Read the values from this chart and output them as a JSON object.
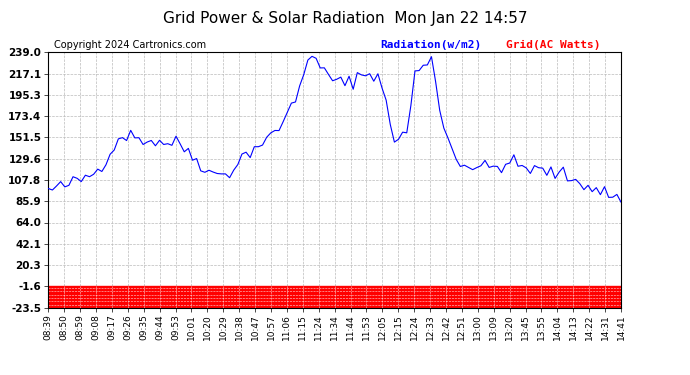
{
  "title": "Grid Power & Solar Radiation  Mon Jan 22 14:57",
  "copyright": "Copyright 2024 Cartronics.com",
  "legend_radiation": "Radiation(w/m2)",
  "legend_grid": "Grid(AC Watts)",
  "radiation_color": "blue",
  "grid_color": "red",
  "background_color": "white",
  "plot_bg_color": "white",
  "yticks": [
    239.0,
    217.1,
    195.3,
    173.4,
    151.5,
    129.6,
    107.8,
    85.9,
    64.0,
    42.1,
    20.3,
    -1.6,
    -23.5
  ],
  "ylim": [
    -23.5,
    239.0
  ],
  "xtick_labels": [
    "08:39",
    "08:50",
    "08:59",
    "09:08",
    "09:17",
    "09:26",
    "09:35",
    "09:44",
    "09:53",
    "10:01",
    "10:20",
    "10:29",
    "10:38",
    "10:47",
    "10:57",
    "11:06",
    "11:15",
    "11:24",
    "11:34",
    "11:44",
    "11:53",
    "12:05",
    "12:15",
    "12:24",
    "12:33",
    "12:42",
    "12:51",
    "13:00",
    "13:09",
    "13:20",
    "13:45",
    "13:55",
    "14:04",
    "14:13",
    "14:22",
    "14:31",
    "14:41"
  ],
  "grid_power_value": -11.8,
  "n_points": 140,
  "key_x": [
    0,
    3,
    8,
    12,
    18,
    25,
    32,
    40,
    44,
    48,
    55,
    60,
    63,
    68,
    72,
    75,
    80,
    84,
    87,
    89,
    91,
    93,
    96,
    99,
    102,
    107,
    112,
    118,
    123,
    128,
    133,
    139
  ],
  "key_y": [
    97,
    100,
    108,
    118,
    155,
    148,
    145,
    113,
    116,
    135,
    155,
    190,
    236,
    215,
    205,
    215,
    218,
    150,
    155,
    218,
    222,
    236,
    160,
    130,
    122,
    120,
    125,
    118,
    115,
    108,
    98,
    88
  ]
}
